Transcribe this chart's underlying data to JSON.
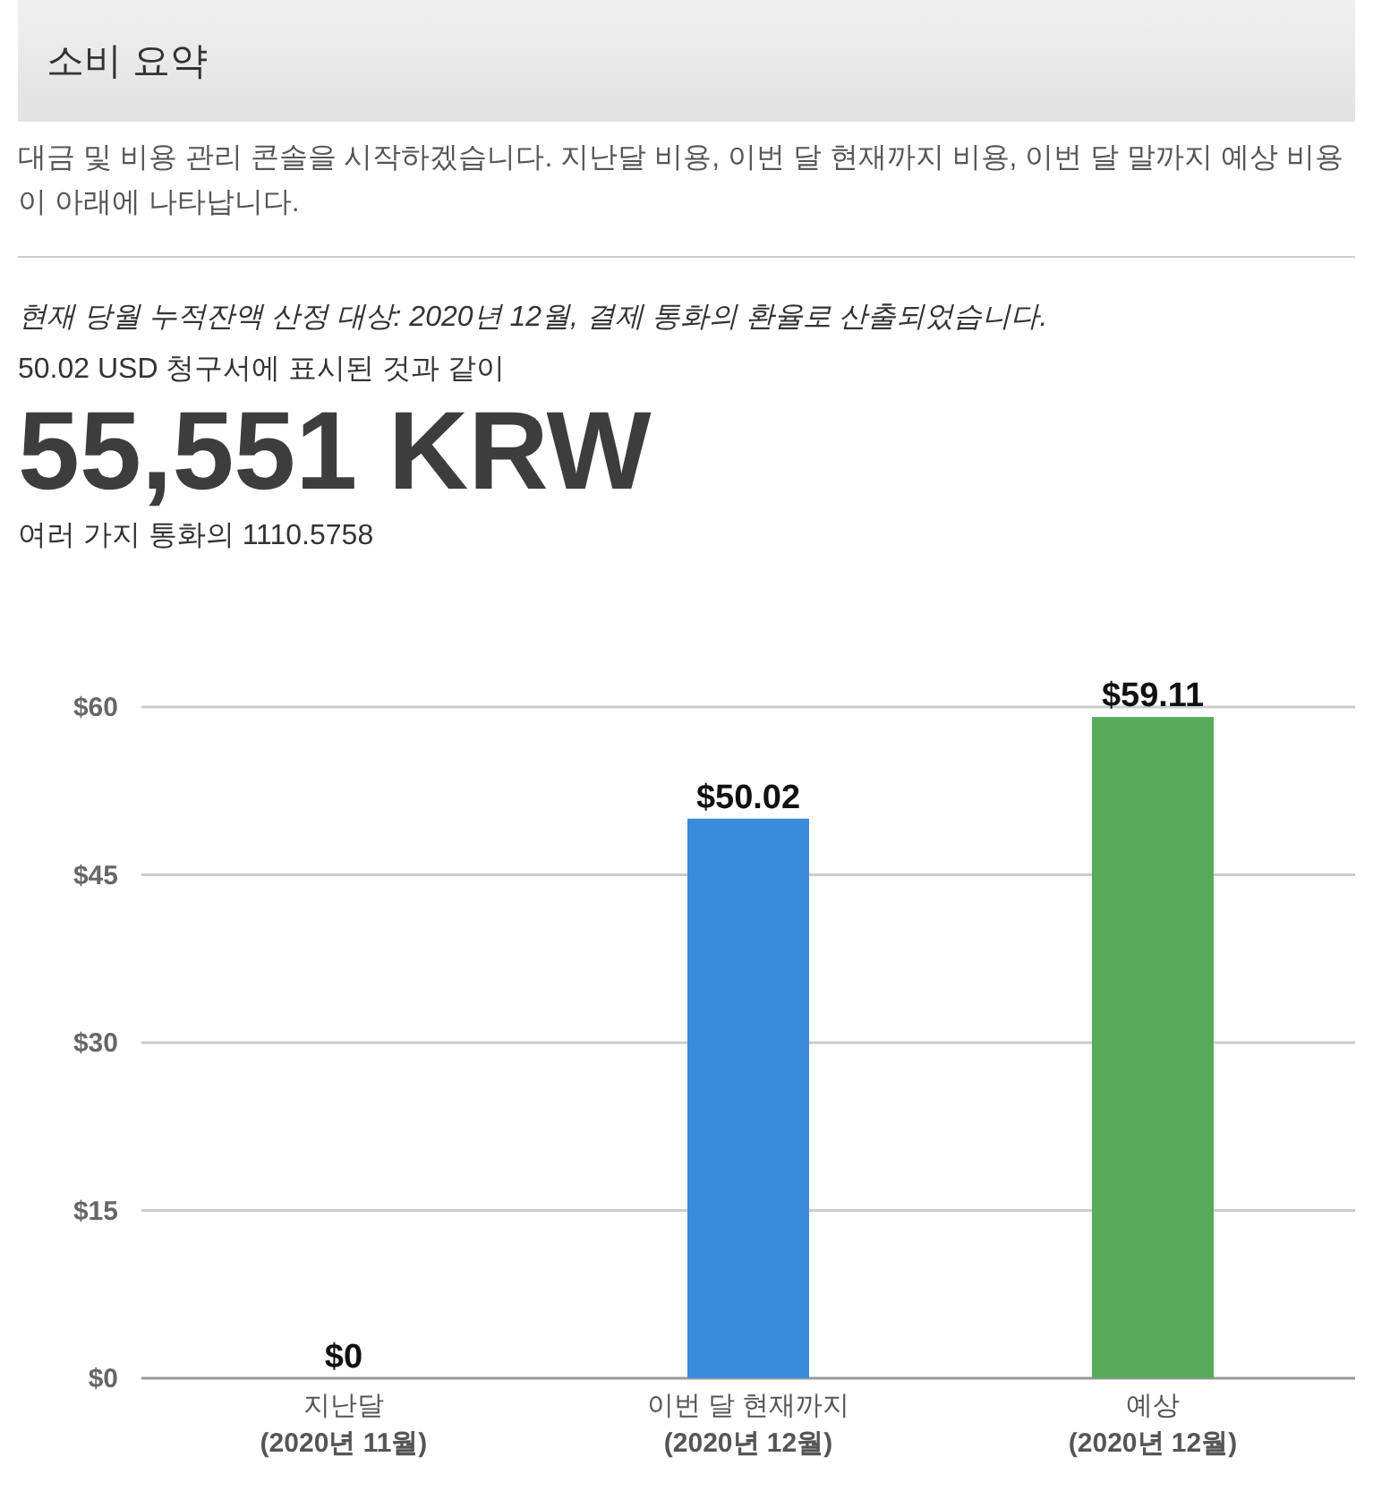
{
  "chart_data": {
    "type": "bar",
    "title": "소비 요약",
    "annotations": [
      "대금 및 비용 관리 콘솔을 시작하겠습니다. 지난달 비용, 이번 달 현재까지 비용, 이번 달 말까지 예상 비용이 아래에 나타납니다.",
      "현재 당월 누적잔액 산정 대상: 2020년 12월, 결제 통화의 환율로 산출되었습니다.",
      "50.02 USD 청구서에 표시된 것과 같이",
      "55,551 KRW",
      "여러 가지 통화의 1110.5758"
    ],
    "categories": [
      "지난달\n(2020년 11월)",
      "이번 달 현재까지\n(2020년 12월)",
      "예상\n(2020년 12월)"
    ],
    "values": [
      0,
      50.02,
      59.11
    ],
    "colors": [
      "#3a8bdb",
      "#3a8bdb",
      "#57ab5a"
    ],
    "value_labels": [
      "$0",
      "$50.02",
      "$59.11"
    ],
    "ylim": [
      0,
      60
    ],
    "yticks": [
      {
        "value": 0,
        "label": "$0"
      },
      {
        "value": 15,
        "label": "$15"
      },
      {
        "value": 30,
        "label": "$30"
      },
      {
        "value": 45,
        "label": "$45"
      },
      {
        "value": 60,
        "label": "$60"
      }
    ],
    "grid": "y"
  }
}
